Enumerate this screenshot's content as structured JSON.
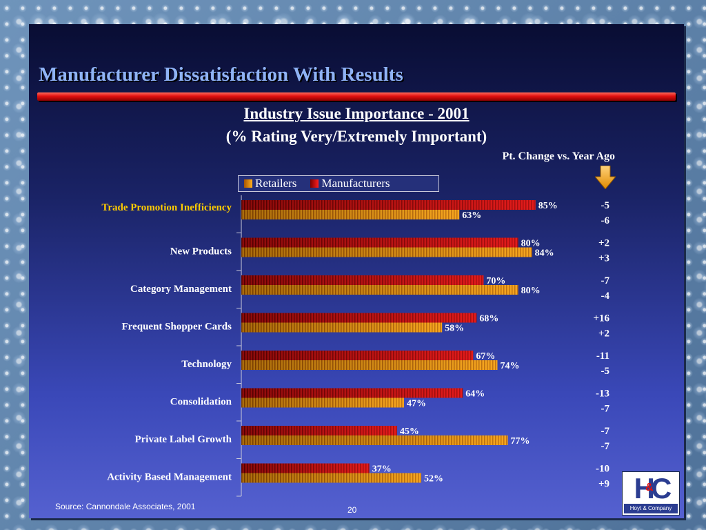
{
  "slide": {
    "title": "Manufacturer Dissatisfaction With Results",
    "source": "Source:  Cannondale Associates, 2001",
    "page_number": "20",
    "pt_change_label": "Pt. Change vs. Year Ago"
  },
  "logo": {
    "mark": "HC",
    "amp": "&",
    "caption": "Hoyt & Company"
  },
  "colors": {
    "manufacturers": "#e01010",
    "retailers": "#f29a10",
    "highlight_label": "#ffcc00"
  },
  "chart_data": {
    "type": "bar",
    "orientation": "horizontal",
    "title": "Industry Issue Importance - 2001",
    "subtitle": "(% Rating Very/Extremely Important)",
    "categories": [
      "Trade Promotion Inefficiency",
      "New Products",
      "Category Management",
      "Frequent Shopper Cards",
      "Technology",
      "Consolidation",
      "Private Label Growth",
      "Activity Based Management"
    ],
    "highlighted_category": "Trade Promotion Inefficiency",
    "series": [
      {
        "name": "Manufacturers",
        "values": [
          85,
          80,
          70,
          68,
          67,
          64,
          45,
          37
        ],
        "labels": [
          "85%",
          "80%",
          "70%",
          "68%",
          "67%",
          "64%",
          "45%",
          "37%"
        ],
        "pt_change": [
          "-5",
          "+2",
          "-7",
          "+16",
          "-11",
          "-13",
          "-7",
          "-10"
        ]
      },
      {
        "name": "Retailers",
        "values": [
          63,
          84,
          80,
          58,
          74,
          47,
          77,
          52
        ],
        "labels": [
          "63%",
          "84%",
          "80%",
          "58%",
          "74%",
          "47%",
          "77%",
          "52%"
        ],
        "pt_change": [
          "-6",
          "+3",
          "-4",
          "+2",
          "-5",
          "-7",
          "-7",
          "+9"
        ]
      }
    ],
    "legend": {
      "placement": "top",
      "entries": [
        "Retailers",
        "Manufacturers"
      ]
    },
    "xlim": [
      0,
      100
    ],
    "grid": false
  }
}
